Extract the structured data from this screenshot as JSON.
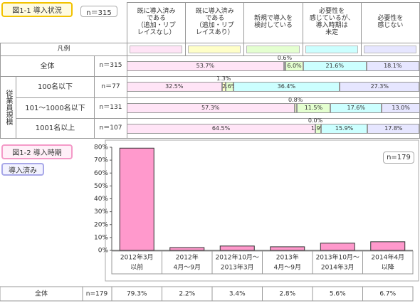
{
  "chart_data": [
    {
      "type": "stacked-bar",
      "title": "図1-1 導入状況",
      "n_label": "n＝315",
      "legend_label": "凡例",
      "group_label": "従業員規模",
      "categories": [
        "全体",
        "100名以下",
        "101〜1000名以下",
        "1001名以上"
      ],
      "n": [
        "n＝315",
        "n＝77",
        "n＝131",
        "n＝107"
      ],
      "xlim": [
        0,
        100
      ],
      "series": [
        {
          "name": "既に導入済み\nである\n（追加・リプ\nレイスなし）",
          "color": "#ffe4f6",
          "values": [
            53.7,
            32.5,
            57.3,
            64.5
          ],
          "value_labels": [
            "53.7%",
            "32.5%",
            "57.3%",
            "64.5%"
          ]
        },
        {
          "name": "既に導入済み\nである\n（追加・リプ\nレイスあり）",
          "color": "#ffffc8",
          "values": [
            0.6,
            1.3,
            0.8,
            0
          ],
          "value_labels": [
            "0.6%",
            "1.3%",
            "0.8%",
            "0.0%"
          ]
        },
        {
          "name": "新規で導入を\n検討している",
          "color": "#e4ffd0",
          "values": [
            6.0,
            2.6,
            11.5,
            1.9
          ],
          "value_labels": [
            "6.0%",
            "2.6%",
            "11.5%",
            "1.9%"
          ]
        },
        {
          "name": "必要性を\n感じているが、\n導入時期は\n未定",
          "color": "#ccffff",
          "values": [
            21.6,
            36.4,
            17.6,
            15.9
          ],
          "value_labels": [
            "21.6%",
            "36.4%",
            "17.6%",
            "15.9%"
          ]
        },
        {
          "name": "必要性を\n感じない",
          "color": "#e6e6ff",
          "values": [
            18.1,
            27.3,
            13.0,
            17.8
          ],
          "value_labels": [
            "18.1%",
            "27.3%",
            "13.0%",
            "17.8%"
          ]
        }
      ]
    },
    {
      "type": "bar",
      "title": "図1-2 導入時期",
      "subtitle": "導入済み",
      "n_label": "n=179",
      "categories": [
        [
          "2012年3月",
          "以前"
        ],
        [
          "2012年",
          "4月〜9月"
        ],
        [
          "2012年10月〜",
          "2013年3月"
        ],
        [
          "2013年",
          "4月〜9月"
        ],
        [
          "2013年10月〜",
          "2014年3月"
        ],
        [
          "2014年4月",
          "以降"
        ]
      ],
      "values": [
        79.3,
        2.2,
        3.4,
        2.8,
        5.6,
        6.7
      ],
      "value_labels": [
        "79.3%",
        "2.2%",
        "3.4%",
        "2.8%",
        "5.6%",
        "6.7%"
      ],
      "color": "#ff99cc",
      "ylim": [
        0,
        80
      ],
      "yticks": [
        {
          "value": 0,
          "label": "0%"
        },
        {
          "value": 10,
          "label": "10%"
        },
        {
          "value": 20,
          "label": "20%"
        },
        {
          "value": 30,
          "label": "30%"
        },
        {
          "value": 40,
          "label": "40%"
        },
        {
          "value": 50,
          "label": "50%"
        },
        {
          "value": 60,
          "label": "60%"
        },
        {
          "value": 70,
          "label": "70%"
        },
        {
          "value": 80,
          "label": "80%"
        }
      ],
      "grid": false,
      "table_row_label": "全体",
      "table_n": "n=179"
    }
  ]
}
